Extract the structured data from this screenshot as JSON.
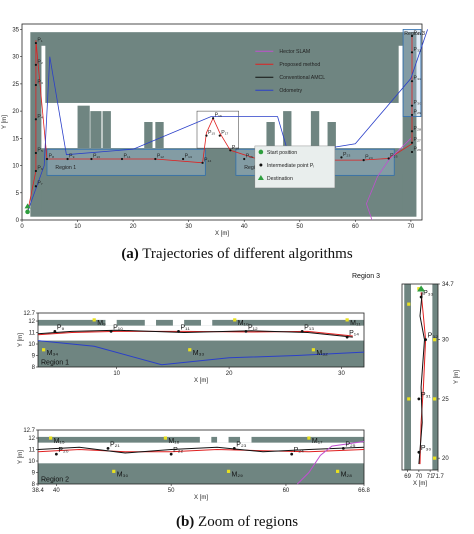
{
  "captions": {
    "a_tag": "(a)",
    "a_text": "Trajectories of different algorithms",
    "b_tag": "(b)",
    "b_text": "Zoom of regions"
  },
  "colors": {
    "floor": "#6f8581",
    "hector": "#c050d0",
    "proposed": "#e02020",
    "amcl": "#111111",
    "odometry": "#2a3fc9",
    "region_box": "#2f6fb0",
    "start": "#2e9e3e",
    "intermediate": "#111111",
    "destination": "#2e9e3e",
    "marker": "#e8e020"
  },
  "chart_data": [
    {
      "type": "line",
      "title": "",
      "xlabel": "X [m]",
      "ylabel": "Y [m]",
      "xlim": [
        0,
        72
      ],
      "ylim": [
        0,
        36
      ],
      "xticks": [
        "0",
        "10",
        "20",
        "30",
        "40",
        "50",
        "60",
        "70"
      ],
      "yticks": [
        "0",
        "5",
        "10",
        "15",
        "20",
        "25",
        "30",
        "35"
      ],
      "legend": [
        {
          "name": "Hector SLAM",
          "color": "#c050d0"
        },
        {
          "name": "Proposed method",
          "color": "#e02020"
        },
        {
          "name": "Conventional AMCL",
          "color": "#111111"
        },
        {
          "name": "Odometry",
          "color": "#2a3fc9"
        }
      ],
      "legend_placement": "top-right",
      "marker_legend": [
        "Start position",
        "Intermediate point Pᵢ",
        "Destination"
      ],
      "regions": [
        "Region 1",
        "Region 2",
        "Region 3"
      ],
      "points": [
        {
          "label": "P₁",
          "x": 2.5,
          "y": 32.5
        },
        {
          "label": "P₂",
          "x": 2.5,
          "y": 28.5
        },
        {
          "label": "P₃",
          "x": 2.5,
          "y": 24.8
        },
        {
          "label": "P₄",
          "x": 2.5,
          "y": 18.5
        },
        {
          "label": "P₅",
          "x": 2.5,
          "y": 12.3
        },
        {
          "label": "P₆",
          "x": 2.5,
          "y": 9
        },
        {
          "label": "P₇",
          "x": 2.5,
          "y": 6.2
        },
        {
          "label": "P₈",
          "x": 4.5,
          "y": 11.2
        },
        {
          "label": "P₉",
          "x": 8.2,
          "y": 11.2
        },
        {
          "label": "P₁₀",
          "x": 12.5,
          "y": 11.2
        },
        {
          "label": "P₁₁",
          "x": 18,
          "y": 11.2
        },
        {
          "label": "P₁₂",
          "x": 24,
          "y": 11.2
        },
        {
          "label": "P₁₃",
          "x": 29,
          "y": 11.2
        },
        {
          "label": "P₁₄",
          "x": 32.5,
          "y": 10.5
        },
        {
          "label": "P₁₅",
          "x": 33.2,
          "y": 15.5
        },
        {
          "label": "P₁₆",
          "x": 34.4,
          "y": 18.7
        },
        {
          "label": "P₁₇",
          "x": 35.6,
          "y": 15.5
        },
        {
          "label": "P₁₈",
          "x": 37.5,
          "y": 12.8
        },
        {
          "label": "P₁₉",
          "x": 40,
          "y": 11.2
        },
        {
          "label": "P₂₀",
          "x": 43.5,
          "y": 11
        },
        {
          "label": "P₂₁",
          "x": 47.5,
          "y": 11.5
        },
        {
          "label": "P₂₂",
          "x": 52.5,
          "y": 11
        },
        {
          "label": "P₂₃",
          "x": 57.5,
          "y": 11.5
        },
        {
          "label": "P₂₄",
          "x": 61.5,
          "y": 11
        },
        {
          "label": "P₂₅",
          "x": 66,
          "y": 11.3
        },
        {
          "label": "P₂₆",
          "x": 70.2,
          "y": 12.5
        },
        {
          "label": "P₂₇",
          "x": 70.2,
          "y": 14.2
        },
        {
          "label": "P₂₈",
          "x": 70.2,
          "y": 16.3
        },
        {
          "label": "P₂₉",
          "x": 70.2,
          "y": 19.3
        },
        {
          "label": "P₃₀",
          "x": 70.2,
          "y": 21
        },
        {
          "label": "P₃₁",
          "x": 70.2,
          "y": 25.5
        },
        {
          "label": "P₃₂",
          "x": 70.2,
          "y": 30.8
        },
        {
          "label": "P₃₃",
          "x": 70.2,
          "y": 33.8
        }
      ],
      "series": [
        {
          "name": "Proposed method",
          "x": [
            1,
            2.5,
            2.5,
            2.5,
            4.5,
            12,
            24,
            32.5,
            33.2,
            34.4,
            35.6,
            37.5,
            43,
            52,
            61,
            66,
            70.2,
            70.2,
            70.2
          ],
          "y": [
            1.5,
            9,
            22,
            33,
            11.2,
            11.2,
            11.2,
            10.5,
            16,
            18.7,
            16,
            12.8,
            11,
            11,
            11,
            11.3,
            14,
            25,
            34
          ]
        },
        {
          "name": "Odometry",
          "x": [
            1,
            4,
            5,
            8,
            20,
            34,
            46,
            48,
            60,
            70,
            73
          ],
          "y": [
            1.5,
            10,
            30,
            12,
            13,
            19,
            19,
            12,
            14,
            26,
            35
          ]
        },
        {
          "name": "Hector SLAM",
          "x": [
            70,
            66,
            64,
            62,
            63
          ],
          "y": [
            15,
            11,
            8,
            3,
            0
          ]
        }
      ]
    },
    {
      "type": "line",
      "title": "Region 1",
      "xlabel": "X [m]",
      "ylabel": "Y [m]",
      "xlim": [
        3,
        32
      ],
      "ylim": [
        8,
        12.7
      ],
      "xticks": [
        "10",
        "20",
        "30"
      ],
      "yticks": [
        "8",
        "9",
        "10",
        "11",
        "12",
        "12.7"
      ],
      "points": [
        {
          "label": "P₉",
          "x": 4.5,
          "y": 11.1
        },
        {
          "label": "P₁₀",
          "x": 9.5,
          "y": 11.1
        },
        {
          "label": "P₁₁",
          "x": 15.5,
          "y": 11.1
        },
        {
          "label": "P₁₂",
          "x": 21.5,
          "y": 11.1
        },
        {
          "label": "P₁₃",
          "x": 26.5,
          "y": 11.1
        },
        {
          "label": "P₁₄",
          "x": 30.5,
          "y": 10.6
        }
      ],
      "markers": [
        {
          "label": "M₉",
          "x": 8,
          "y": 12.1
        },
        {
          "label": "M₁₀",
          "x": 20.5,
          "y": 12.1
        },
        {
          "label": "M₁₁",
          "x": 30.5,
          "y": 12.1
        },
        {
          "label": "M₃₄",
          "x": 3.5,
          "y": 9.5
        },
        {
          "label": "M₃₃",
          "x": 16.5,
          "y": 9.5
        },
        {
          "label": "M₃₂",
          "x": 27.5,
          "y": 9.5
        }
      ],
      "series": [
        {
          "name": "Proposed method",
          "x": [
            3,
            6,
            10,
            16,
            22,
            27,
            31
          ],
          "y": [
            10.8,
            11,
            11.1,
            11.1,
            11.05,
            11.1,
            10.7
          ]
        },
        {
          "name": "Conventional AMCL",
          "x": [
            3,
            6,
            10,
            16,
            22,
            27,
            31
          ],
          "y": [
            10.9,
            11.1,
            11.2,
            11.0,
            11.15,
            11.0,
            10.6
          ]
        },
        {
          "name": "Odometry",
          "x": [
            3,
            8,
            14,
            20,
            26,
            32
          ],
          "y": [
            10.3,
            9.8,
            8.2,
            8.8,
            9.0,
            9.3
          ]
        }
      ]
    },
    {
      "type": "line",
      "title": "Region 2",
      "xlabel": "X [m]",
      "ylabel": "Y [m]",
      "xlim": [
        38.4,
        66.8
      ],
      "ylim": [
        8,
        12.7
      ],
      "xticks": [
        "38.4",
        "40",
        "50",
        "60",
        "66.8"
      ],
      "yticks": [
        "8",
        "9",
        "10",
        "11",
        "12",
        "12.7"
      ],
      "points": [
        {
          "label": "P₂₀",
          "x": 40,
          "y": 10.6
        },
        {
          "label": "P₂₁",
          "x": 44.5,
          "y": 11.1
        },
        {
          "label": "P₂₂",
          "x": 50,
          "y": 10.6
        },
        {
          "label": "P₂₃",
          "x": 55.5,
          "y": 11.1
        },
        {
          "label": "P₂₄",
          "x": 60.5,
          "y": 10.6
        },
        {
          "label": "P₂₅",
          "x": 65,
          "y": 11.1
        }
      ],
      "markers": [
        {
          "label": "M₁₅",
          "x": 39.5,
          "y": 12
        },
        {
          "label": "M₁₆",
          "x": 49.5,
          "y": 12
        },
        {
          "label": "M₁₇",
          "x": 62,
          "y": 12
        },
        {
          "label": "M₃₀",
          "x": 45,
          "y": 9.1
        },
        {
          "label": "M₂₉",
          "x": 55,
          "y": 9.1
        },
        {
          "label": "M₂₈",
          "x": 64.5,
          "y": 9.1
        }
      ],
      "series": [
        {
          "name": "Proposed method",
          "x": [
            38.4,
            42,
            46,
            50,
            54,
            58,
            62,
            66.8
          ],
          "y": [
            10.8,
            11,
            10.8,
            10.8,
            11,
            10.9,
            10.8,
            11
          ]
        },
        {
          "name": "Conventional AMCL",
          "x": [
            38.4,
            42,
            46,
            50,
            54,
            58,
            62,
            66.8
          ],
          "y": [
            11,
            11.2,
            10.7,
            11,
            11.2,
            10.8,
            11,
            11.2
          ]
        },
        {
          "name": "Hector SLAM",
          "x": [
            61,
            62,
            63,
            64,
            66.8
          ],
          "y": [
            8,
            9,
            10.5,
            11.3,
            11.7
          ]
        }
      ]
    },
    {
      "type": "line",
      "title": "Region 3",
      "xlabel": "X [m]",
      "ylabel": "Y [m]",
      "xlim": [
        68.5,
        71.7
      ],
      "ylim": [
        19,
        34.7
      ],
      "xticks": [
        "69",
        "70",
        "71",
        "71.7"
      ],
      "yticks": [
        "20",
        "25",
        "30",
        "34.7"
      ],
      "points": [
        {
          "label": "P₃₀",
          "x": 70,
          "y": 20.5
        },
        {
          "label": "P₃₁",
          "x": 70,
          "y": 25
        },
        {
          "label": "P₃₂",
          "x": 70.6,
          "y": 30
        },
        {
          "label": "P₃₃",
          "x": 70.2,
          "y": 33.6
        }
      ],
      "markers": [
        {
          "label": "",
          "x": 69.1,
          "y": 33
        },
        {
          "label": "",
          "x": 71.4,
          "y": 30
        },
        {
          "label": "",
          "x": 69.1,
          "y": 25
        },
        {
          "label": "",
          "x": 71.4,
          "y": 25
        },
        {
          "label": "",
          "x": 71.4,
          "y": 20
        },
        {
          "label": "",
          "x": 70,
          "y": 34.3
        }
      ],
      "series": [
        {
          "name": "Proposed method",
          "x": [
            70.1,
            70.2,
            70.4,
            70.6,
            70.4,
            70.2
          ],
          "y": [
            19.5,
            23,
            26,
            30,
            32,
            34
          ]
        },
        {
          "name": "Conventional AMCL",
          "x": [
            70.0,
            70.3,
            70.2,
            70.5,
            70.1,
            70.3
          ],
          "y": [
            19.5,
            23,
            26,
            30,
            32,
            34
          ]
        }
      ]
    }
  ]
}
